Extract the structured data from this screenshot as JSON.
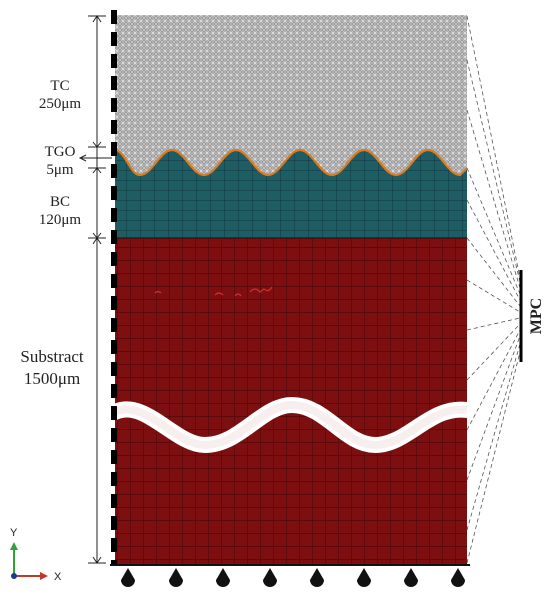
{
  "layers": [
    {
      "name": "TC",
      "thickness": "250μm",
      "color": "#8a8a8a"
    },
    {
      "name": "TGO",
      "thickness": "5μm",
      "color": "#d08a2a"
    },
    {
      "name": "BC",
      "thickness": "120μm",
      "color": "#1e5b63"
    },
    {
      "name": "Substract",
      "thickness": "1500μm",
      "color": "#7d0e10"
    }
  ],
  "constraint_label": "MPC",
  "axes": {
    "y": "Y",
    "x": "X"
  },
  "colors": {
    "mesh_line": "#000000",
    "tgo_line": "#e07a1f",
    "wave_band": "#ffffff"
  }
}
